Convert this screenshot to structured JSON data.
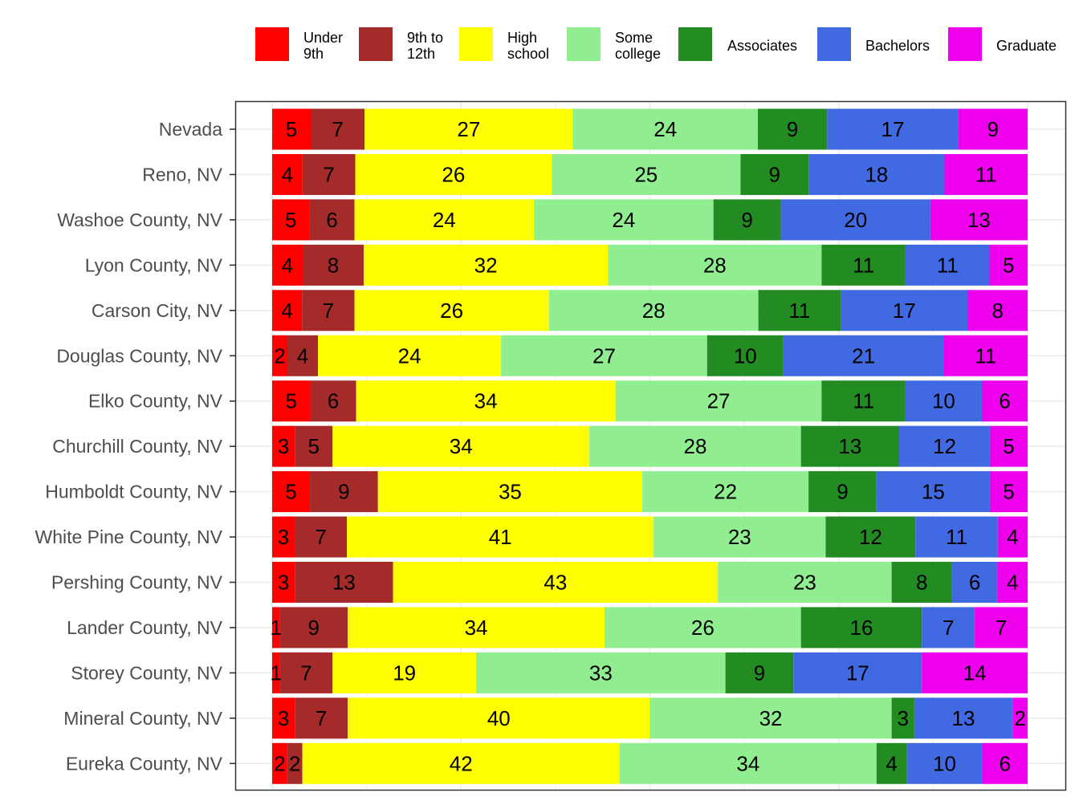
{
  "chart_data": {
    "type": "bar",
    "orientation": "horizontal",
    "stacked": true,
    "percent": true,
    "title": "",
    "xlabel": "",
    "ylabel": "",
    "xlim": [
      0,
      100
    ],
    "grid": true,
    "legend_position": "top-right",
    "categories": [
      "Nevada",
      "Reno, NV",
      "Washoe County, NV",
      "Lyon County, NV",
      "Carson City, NV",
      "Douglas County, NV",
      "Elko County, NV",
      "Churchill County, NV",
      "Humboldt County, NV",
      "White Pine County, NV",
      "Pershing County, NV",
      "Lander County, NV",
      "Storey County, NV",
      "Mineral County, NV",
      "Eureka County, NV"
    ],
    "series": [
      {
        "name": "Under 9th",
        "legend_lines": [
          "Under",
          "9th"
        ],
        "color": "#ff0000",
        "values": [
          5,
          4,
          5,
          4,
          4,
          2,
          5,
          3,
          5,
          3,
          3,
          1,
          1,
          3,
          2
        ]
      },
      {
        "name": "9th to 12th",
        "legend_lines": [
          "9th to",
          "12th"
        ],
        "color": "#a52a2a",
        "values": [
          7,
          7,
          6,
          8,
          7,
          4,
          6,
          5,
          9,
          7,
          13,
          9,
          7,
          7,
          2
        ]
      },
      {
        "name": "High school",
        "legend_lines": [
          "High",
          "school"
        ],
        "color": "#ffff00",
        "values": [
          27,
          26,
          24,
          32,
          26,
          24,
          34,
          34,
          35,
          41,
          43,
          34,
          19,
          40,
          42
        ]
      },
      {
        "name": "Some college",
        "legend_lines": [
          "Some",
          "college"
        ],
        "color": "#90ee90",
        "values": [
          24,
          25,
          24,
          28,
          28,
          27,
          27,
          28,
          22,
          23,
          23,
          26,
          33,
          32,
          34
        ]
      },
      {
        "name": "Associates",
        "legend_lines": [
          "Associates"
        ],
        "color": "#228b22",
        "values": [
          9,
          9,
          9,
          11,
          11,
          10,
          11,
          13,
          9,
          12,
          8,
          16,
          9,
          3,
          4
        ]
      },
      {
        "name": "Bachelors",
        "legend_lines": [
          "Bachelors"
        ],
        "color": "#4169e1",
        "values": [
          17,
          18,
          20,
          11,
          17,
          21,
          10,
          12,
          15,
          11,
          6,
          7,
          17,
          13,
          10
        ]
      },
      {
        "name": "Graduate",
        "legend_lines": [
          "Graduate"
        ],
        "color": "#ee00ee",
        "values": [
          9,
          11,
          13,
          5,
          8,
          11,
          6,
          5,
          5,
          4,
          4,
          7,
          14,
          2,
          6
        ]
      }
    ]
  }
}
